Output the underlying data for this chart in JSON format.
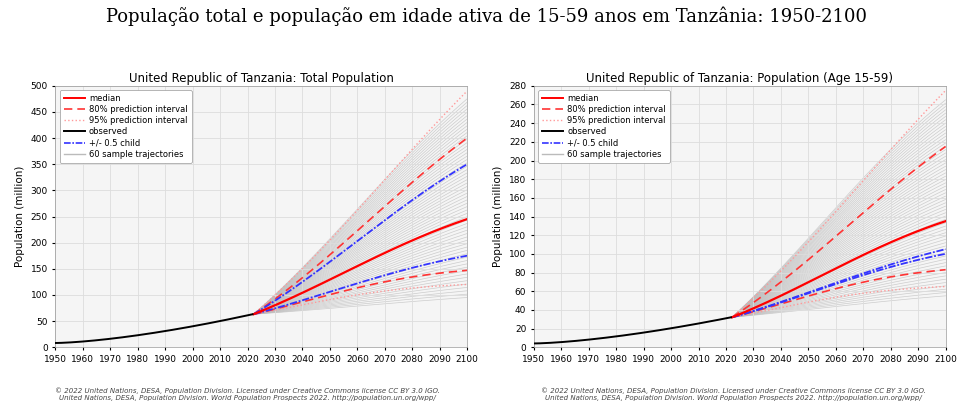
{
  "suptitle": "População total e população em idade ativa de 15-59 anos em Tanzânia: 1950-2100",
  "suptitle_fontsize": 13,
  "left_title": "United Republic of Tanzania: Total Population",
  "right_title": "United Republic of Tanzania: Population (Age 15-59)",
  "subplot_title_fontsize": 8.5,
  "left_ylabel": "Population (million)",
  "right_ylabel": "Population (million)",
  "ylabel_fontsize": 7.5,
  "tick_fontsize": 6.5,
  "left_ylim": [
    0,
    500
  ],
  "left_yticks": [
    0,
    50,
    100,
    150,
    200,
    250,
    300,
    350,
    400,
    450,
    500
  ],
  "right_ylim": [
    0,
    280
  ],
  "right_yticks": [
    0,
    20,
    40,
    60,
    80,
    100,
    120,
    140,
    160,
    180,
    200,
    220,
    240,
    260,
    280
  ],
  "xticks": [
    1950,
    1960,
    1970,
    1980,
    1990,
    2000,
    2010,
    2020,
    2030,
    2040,
    2050,
    2060,
    2070,
    2080,
    2090,
    2100
  ],
  "color_median": "#FF0000",
  "color_80pi": "#FF3333",
  "color_95pi": "#FF9999",
  "color_obs": "#000000",
  "color_child": "#3333FF",
  "color_sample": "#BBBBBB",
  "color_bg": "#F5F5F5",
  "color_grid": "#DDDDDD",
  "legend_labels": [
    "median",
    "80% prediction interval",
    "95% prediction interval",
    "observed",
    "+/- 0.5 child",
    "60 sample trajectories"
  ],
  "footnote": "© 2022 United Nations, DESA, Population Division. Licensed under Creative Commons license CC BY 3.0 IGO.\nUnited Nations, DESA, Population Division. World Population Prospects 2022. http://population.un.org/wpp/",
  "footnote_fontsize": 5.0
}
